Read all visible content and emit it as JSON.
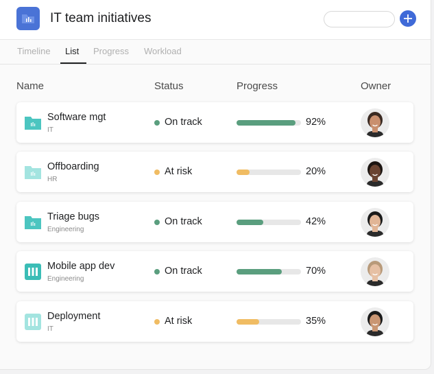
{
  "header": {
    "title": "IT team initiatives"
  },
  "tabs": [
    {
      "label": "Timeline"
    },
    {
      "label": "List",
      "active": true
    },
    {
      "label": "Progress"
    },
    {
      "label": "Workload"
    }
  ],
  "table": {
    "columns": [
      "Name",
      "Status",
      "Progress",
      "Owner"
    ],
    "rows": [
      {
        "name": "Software mgt",
        "team": "IT",
        "status": "On track",
        "progress": 92,
        "progress_label": "92%"
      },
      {
        "name": "Offboarding",
        "team": "HR",
        "status": "At risk",
        "progress": 20,
        "progress_label": "20%"
      },
      {
        "name": "Triage bugs",
        "team": "Engineering",
        "status": "On track",
        "progress": 42,
        "progress_label": "42%"
      },
      {
        "name": "Mobile app dev",
        "team": "Engineering",
        "status": "On track",
        "progress": 70,
        "progress_label": "70%"
      },
      {
        "name": "Deployment",
        "team": "IT",
        "status": "At risk",
        "progress": 35,
        "progress_label": "35%"
      }
    ]
  }
}
